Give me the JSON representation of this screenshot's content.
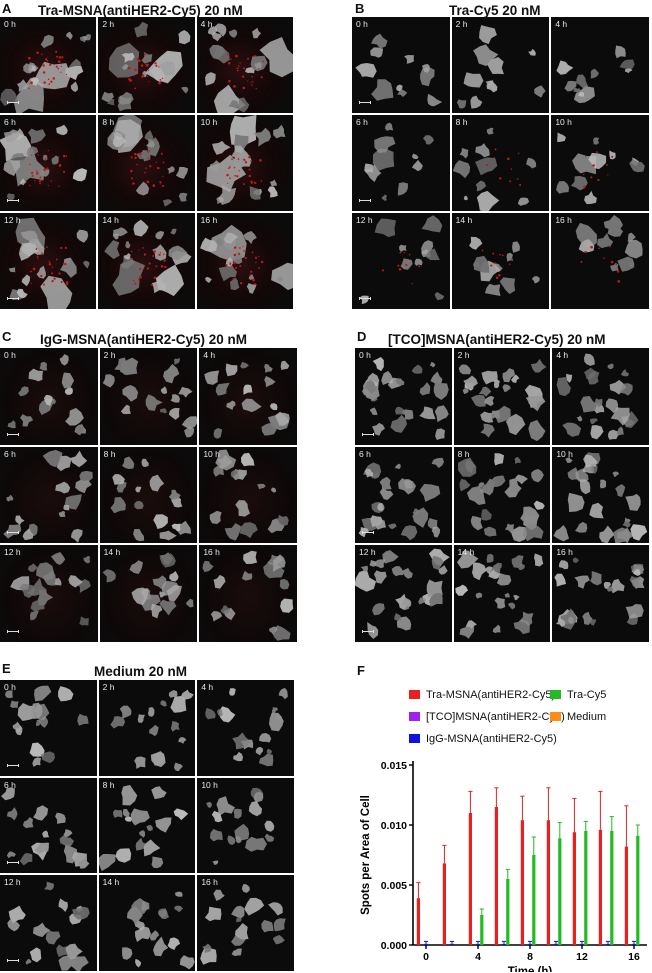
{
  "panels": [
    {
      "id": "A",
      "title": "Tra-MSNA(antiHER2-Cy5) 20 nM",
      "times": [
        "0 h",
        "2 h",
        "4 h",
        "6 h",
        "8 h",
        "10 h",
        "12 h",
        "14 h",
        "16 h"
      ]
    },
    {
      "id": "B",
      "title": "Tra-Cy5 20 nM",
      "times": [
        "0 h",
        "2 h",
        "4 h",
        "6 h",
        "8 h",
        "10 h",
        "12 h",
        "14 h",
        "16 h"
      ]
    },
    {
      "id": "C",
      "title": "IgG-MSNA(antiHER2-Cy5) 20 nM",
      "times": [
        "0 h",
        "2 h",
        "4 h",
        "6 h",
        "8 h",
        "10 h",
        "12 h",
        "14 h",
        "16 h"
      ]
    },
    {
      "id": "D",
      "title": "[TCO]MSNA(antiHER2-Cy5) 20 nM",
      "times": [
        "0 h",
        "2 h",
        "4 h",
        "6 h",
        "8 h",
        "10 h",
        "12 h",
        "14 h",
        "16 h"
      ]
    },
    {
      "id": "E",
      "title": "Medium 20 nM",
      "times": [
        "0 h",
        "2 h",
        "4 h",
        "6 h",
        "8 h",
        "10 h",
        "12 h",
        "14 h",
        "16 h"
      ]
    }
  ],
  "chart_panel_label": "F",
  "chart_data": {
    "type": "bar",
    "title": "",
    "xlabel": "Time (h)",
    "ylabel": "Spots per Area of Cell",
    "x": [
      0,
      2,
      4,
      6,
      8,
      10,
      12,
      14,
      16
    ],
    "xticks": [
      "0",
      "4",
      "8",
      "12",
      "16"
    ],
    "yticks": [
      "0.000",
      "0.005",
      "0.010",
      "0.015"
    ],
    "ylim": [
      0,
      0.015
    ],
    "legend_position": "top",
    "series": [
      {
        "name": "Tra-MSNA(antiHER2-Cy5)",
        "color": "#e8201f",
        "values": [
          0.0039,
          0.0068,
          0.011,
          0.0115,
          0.0104,
          0.0104,
          0.0094,
          0.0096,
          0.0082
        ],
        "errors": [
          0.0013,
          0.0015,
          0.0018,
          0.0016,
          0.002,
          0.0027,
          0.0028,
          0.0032,
          0.0034
        ]
      },
      {
        "name": "[TCO]MSNA(antiHER2-Cy5)",
        "color": "#a020f0",
        "values": [
          0,
          0,
          0,
          0,
          0,
          0,
          0,
          0,
          0
        ],
        "errors": [
          0,
          0,
          0,
          0,
          0,
          0,
          0,
          0,
          0
        ]
      },
      {
        "name": "IgG-MSNA(antiHER2-Cy5)",
        "color": "#1010e0",
        "values": [
          0.0001,
          0.0001,
          0.0001,
          0.0001,
          0.0001,
          0.0001,
          0.0001,
          0.0001,
          0.0001
        ],
        "errors": [
          0.0002,
          0.0002,
          0.0002,
          0.0002,
          0.0002,
          0.0002,
          0.0002,
          0.0002,
          0.0002
        ]
      },
      {
        "name": "Tra-Cy5",
        "color": "#22bb22",
        "values": [
          0,
          0,
          0.0025,
          0.0055,
          0.0075,
          0.0089,
          0.0095,
          0.0095,
          0.0091
        ],
        "errors": [
          0,
          0,
          0.0005,
          0.0008,
          0.0015,
          0.0013,
          0.0008,
          0.0012,
          0.0009
        ]
      },
      {
        "name": "Medium",
        "color": "#ff8c1a",
        "values": [
          0,
          0,
          0,
          0,
          0,
          0,
          0,
          0,
          0
        ],
        "errors": [
          0,
          0,
          0,
          0,
          0,
          0,
          0,
          0,
          0
        ]
      }
    ]
  }
}
